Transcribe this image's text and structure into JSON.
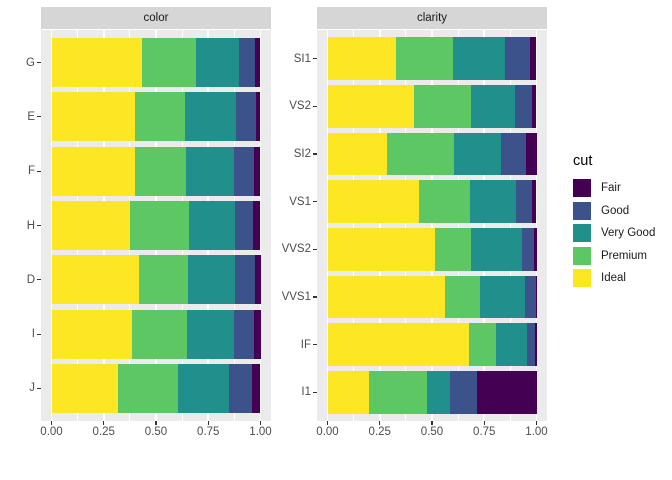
{
  "legend": {
    "title": "cut",
    "entries": [
      {
        "label": "Fair",
        "color": "#440154"
      },
      {
        "label": "Good",
        "color": "#3B528B"
      },
      {
        "label": "Very Good",
        "color": "#21908C"
      },
      {
        "label": "Premium",
        "color": "#5DC863"
      },
      {
        "label": "Ideal",
        "color": "#FDE725"
      }
    ]
  },
  "axis": {
    "x_tick_labels": [
      "0.00",
      "0.25",
      "0.50",
      "0.75",
      "1.00"
    ],
    "x_tick_values": [
      0,
      0.25,
      0.5,
      0.75,
      1
    ]
  },
  "chart_data": [
    {
      "type": "bar",
      "orientation": "horizontal",
      "stacking": "fill",
      "facet": "color",
      "xlim": [
        0,
        1
      ],
      "grid": "white-on-gray",
      "categories": [
        "G",
        "E",
        "F",
        "H",
        "D",
        "I",
        "J"
      ],
      "series": [
        {
          "name": "Ideal",
          "color": "#FDE725",
          "values": [
            0.4325,
            0.3984,
            0.401,
            0.3751,
            0.4183,
            0.386,
            0.3191
          ]
        },
        {
          "name": "Premium",
          "color": "#5DC863",
          "values": [
            0.259,
            0.2385,
            0.2443,
            0.2842,
            0.2366,
            0.2634,
            0.2877
          ]
        },
        {
          "name": "Very Good",
          "color": "#21908C",
          "values": [
            0.2036,
            0.245,
            0.2268,
            0.2197,
            0.2233,
            0.2221,
            0.2414
          ]
        },
        {
          "name": "Good",
          "color": "#3B528B",
          "values": [
            0.0771,
            0.0952,
            0.0953,
            0.0845,
            0.0977,
            0.0963,
            0.1093
          ]
        },
        {
          "name": "Fair",
          "color": "#440154",
          "values": [
            0.0278,
            0.0229,
            0.0327,
            0.0365,
            0.0241,
            0.0323,
            0.0424
          ]
        }
      ]
    },
    {
      "type": "bar",
      "orientation": "horizontal",
      "stacking": "fill",
      "facet": "clarity",
      "xlim": [
        0,
        1
      ],
      "grid": "white-on-gray",
      "categories": [
        "SI1",
        "VS2",
        "SI2",
        "VS1",
        "VVS2",
        "VVS1",
        "IF",
        "I1"
      ],
      "series": [
        {
          "name": "Ideal",
          "color": "#FDE725",
          "values": [
            0.3277,
            0.4137,
            0.2826,
            0.4392,
            0.5144,
            0.5601,
            0.6771,
            0.197
          ]
        },
        {
          "name": "Premium",
          "color": "#5DC863",
          "values": [
            0.2736,
            0.2739,
            0.3208,
            0.2434,
            0.1717,
            0.1685,
            0.1285,
            0.2767
          ]
        },
        {
          "name": "Very Good",
          "color": "#21908C",
          "values": [
            0.248,
            0.2114,
            0.2284,
            0.2172,
            0.2438,
            0.2159,
            0.1497,
            0.1134
          ]
        },
        {
          "name": "Good",
          "color": "#3B528B",
          "values": [
            0.1194,
            0.0798,
            0.1176,
            0.0793,
            0.0565,
            0.0509,
            0.0397,
            0.1296
          ]
        },
        {
          "name": "Fair",
          "color": "#440154",
          "values": [
            0.0312,
            0.0213,
            0.0507,
            0.0208,
            0.0136,
            0.0047,
            0.005,
            0.2834
          ]
        }
      ]
    }
  ]
}
